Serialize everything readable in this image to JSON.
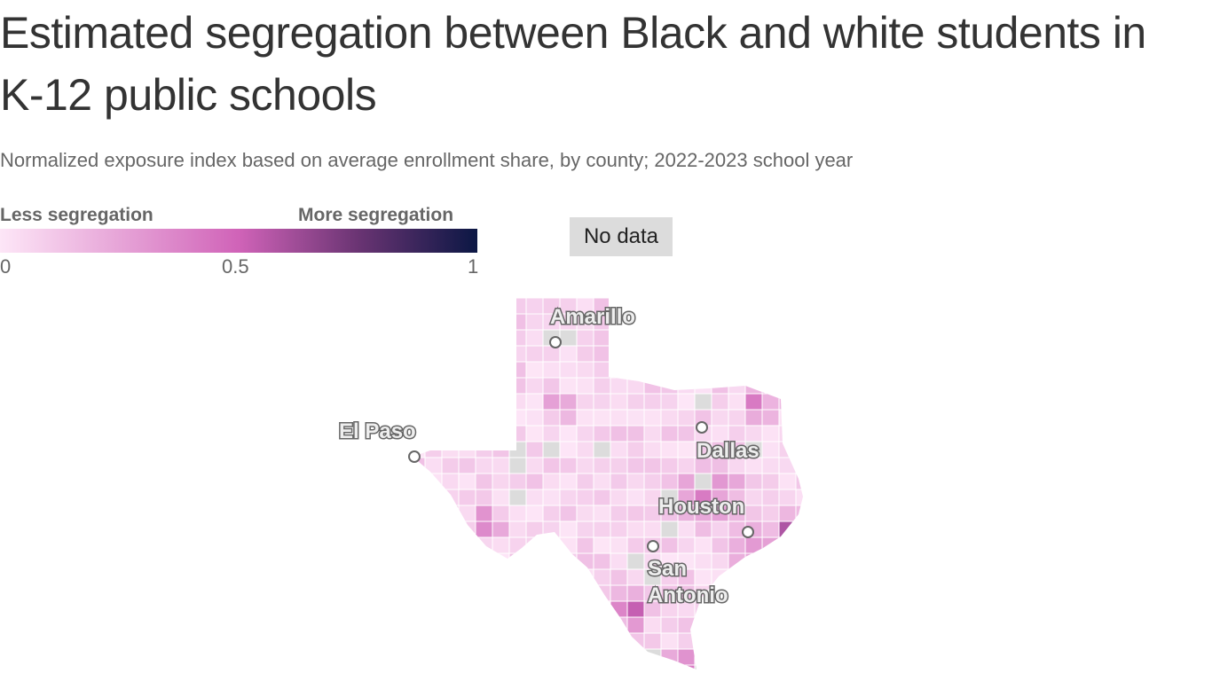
{
  "title": "Estimated segregation between Black and white students in K-12 public schools",
  "subtitle": "Normalized exposure index based on average enrollment share, by county; 2022-2023 school year",
  "legend": {
    "low_label": "Less segregation",
    "high_label": "More segregation",
    "ticks": [
      "0",
      "0.5",
      "1"
    ],
    "no_data_label": "No data",
    "colors": {
      "low": "#fde6f7",
      "mid": "#d063b8",
      "high": "#0b1744",
      "no_data": "#dcdcdc"
    }
  },
  "map": {
    "region": "Texas counties",
    "cities": [
      {
        "name": "Amarillo",
        "lines": [
          "Amarillo"
        ]
      },
      {
        "name": "El Paso",
        "lines": [
          "El Paso"
        ]
      },
      {
        "name": "Dallas",
        "lines": [
          "Dallas"
        ]
      },
      {
        "name": "Houston",
        "lines": [
          "Houston"
        ]
      },
      {
        "name": "San Antonio",
        "lines": [
          "San",
          "Antonio"
        ]
      }
    ]
  }
}
